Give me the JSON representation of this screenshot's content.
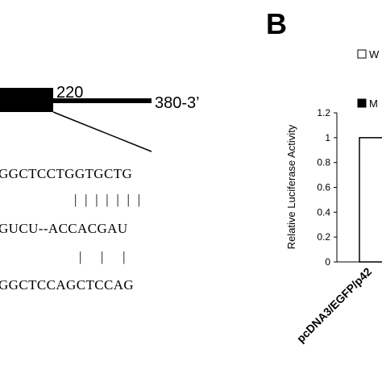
{
  "diagram": {
    "position_label": "220",
    "end_label": "380-3’",
    "sequences": [
      "GGCTCCTGGTGCTG",
      "|  |  |  |  |  |  |",
      "GUCU--ACCACGAU",
      "|     |     |",
      "GGCTCCAGCTCCAG"
    ]
  },
  "chart_data": {
    "type": "bar",
    "panel_label": "B",
    "y_label": "Relative Luciferase Activity",
    "categories": [
      "pcDNA3/EGFP/p42"
    ],
    "series": [
      {
        "name": "W",
        "color": "#ffffff",
        "values": [
          1
        ]
      },
      {
        "name": "M",
        "color": "#000000",
        "values": [
          null
        ]
      }
    ],
    "ylim": [
      0,
      1.2
    ],
    "yticks": [
      0,
      0.2,
      0.4,
      0.6,
      0.8,
      1,
      1.2
    ],
    "grid": false
  }
}
